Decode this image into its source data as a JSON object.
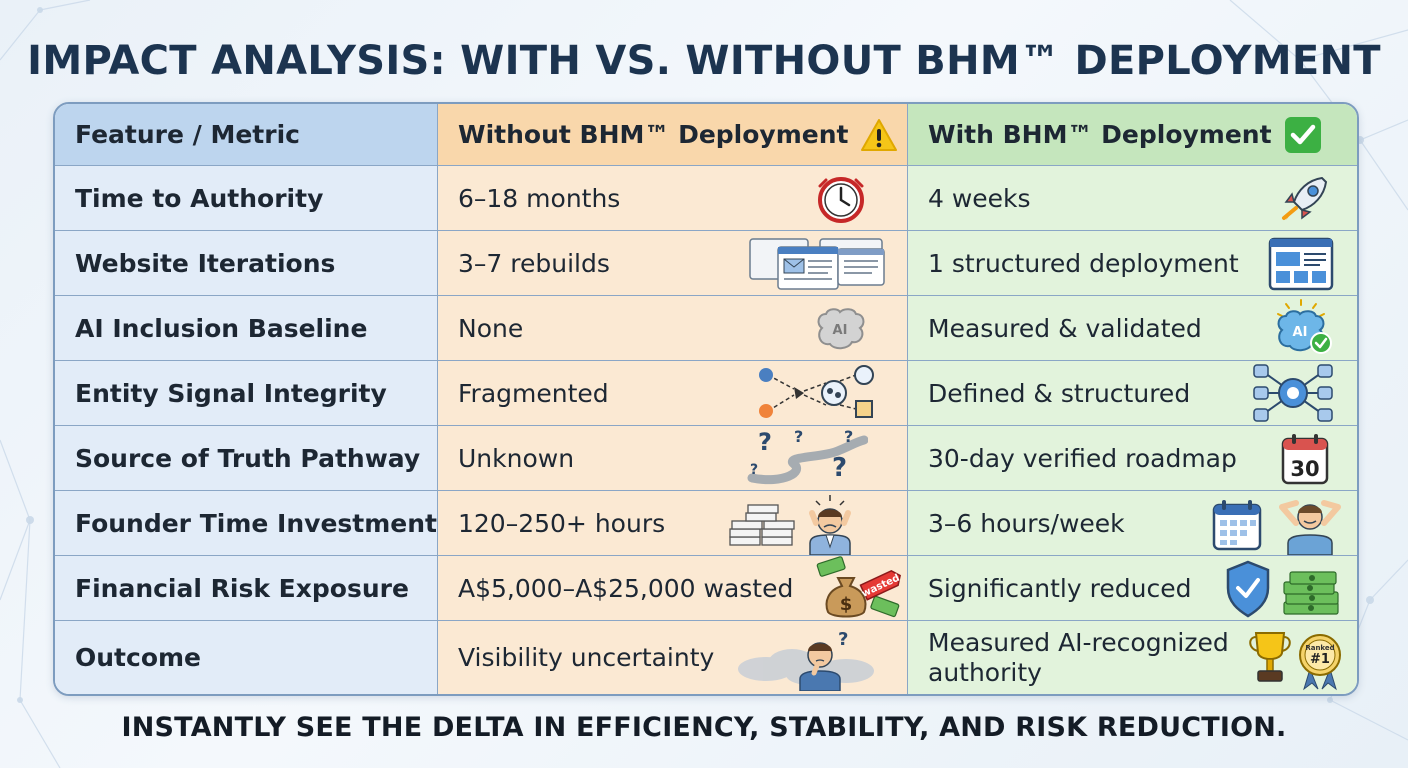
{
  "title": "IMPACT ANALYSIS: WITH VS. WITHOUT BHM™ DEPLOYMENT",
  "footer": "INSTANTLY SEE THE DELTA IN EFFICIENCY, STABILITY, AND RISK REDUCTION.",
  "headers": {
    "metric": "Feature / Metric",
    "without": "Without BHM™ Deployment",
    "with": "With BHM™ Deployment",
    "without_icon": "warning-icon",
    "with_icon": "check-icon"
  },
  "rows": [
    {
      "metric": "Time to Authority",
      "without": "6–18 months",
      "with": "4 weeks",
      "without_icon": "clock-icon",
      "with_icon": "rocket-icon"
    },
    {
      "metric": "Website Iterations",
      "without": "3–7 rebuilds",
      "with": "1 structured deployment",
      "without_icon": "browser-windows-icon",
      "with_icon": "dashboard-icon"
    },
    {
      "metric": "AI Inclusion Baseline",
      "without": "None",
      "with": "Measured & validated",
      "without_icon": "ai-brain-grey-icon",
      "with_icon": "ai-brain-check-icon"
    },
    {
      "metric": "Entity Signal Integrity",
      "without": "Fragmented",
      "with": "Defined & structured",
      "without_icon": "fragmented-network-icon",
      "with_icon": "structured-network-icon"
    },
    {
      "metric": "Source of Truth Pathway",
      "without": "Unknown",
      "with": "30-day verified roadmap",
      "without_icon": "winding-path-question-icon",
      "with_icon": "calendar-30-icon"
    },
    {
      "metric": "Founder Time Investment",
      "without": "120–250+ hours",
      "with": "3–6 hours/week",
      "without_icon": "stressed-founder-icon",
      "with_icon": "relaxed-founder-icon"
    },
    {
      "metric": "Financial Risk Exposure",
      "without": "A$5,000–A$25,000 wasted",
      "with": "Significantly reduced",
      "without_icon": "money-bag-tag-icon",
      "with_icon": "shield-cash-icon"
    },
    {
      "metric": "Outcome",
      "without": "Visibility uncertainty",
      "with": "Measured AI-recognized authority",
      "without_icon": "confused-person-cloud-icon",
      "with_icon": "trophy-ranked-icon"
    }
  ],
  "icon_text": {
    "ai": "AI",
    "calendar": "30",
    "ranked": "Ranked",
    "rank": "#1",
    "tag": "wasted"
  },
  "colors": {
    "title": "#1c3450",
    "metric_col": "#e2ecf8",
    "without_col": "#fbe9d3",
    "with_col": "#e2f3dc",
    "border": "#7d9cbf"
  }
}
